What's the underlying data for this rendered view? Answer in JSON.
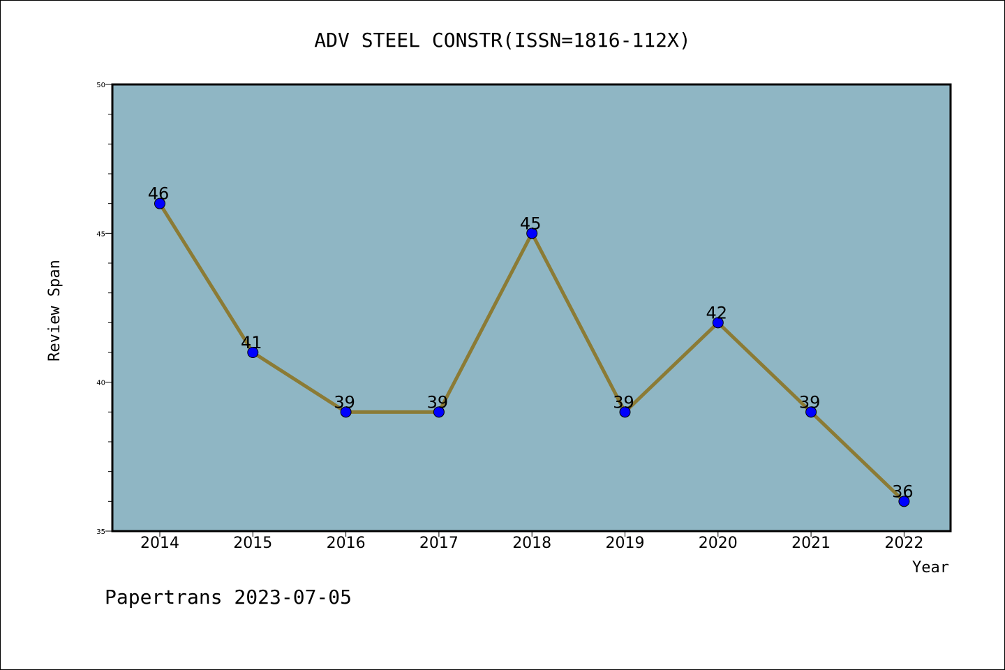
{
  "chart_data": {
    "type": "line",
    "title": "ADV STEEL CONSTR(ISSN=1816-112X)",
    "xlabel": "Year",
    "ylabel": "Review Span",
    "categories": [
      "2014",
      "2015",
      "2016",
      "2017",
      "2018",
      "2019",
      "2020",
      "2021",
      "2022"
    ],
    "series": [
      {
        "values": [
          46,
          41,
          39,
          39,
          45,
          39,
          42,
          39,
          36
        ]
      }
    ],
    "ylim": [
      35,
      50
    ],
    "yticks": [
      35,
      40,
      45,
      50
    ],
    "grid": false,
    "colors": {
      "plot_background": "#8fb6c4",
      "line": "#8b7b35",
      "marker": "#0000ff"
    }
  },
  "footer": "Papertrans 2023-07-05"
}
